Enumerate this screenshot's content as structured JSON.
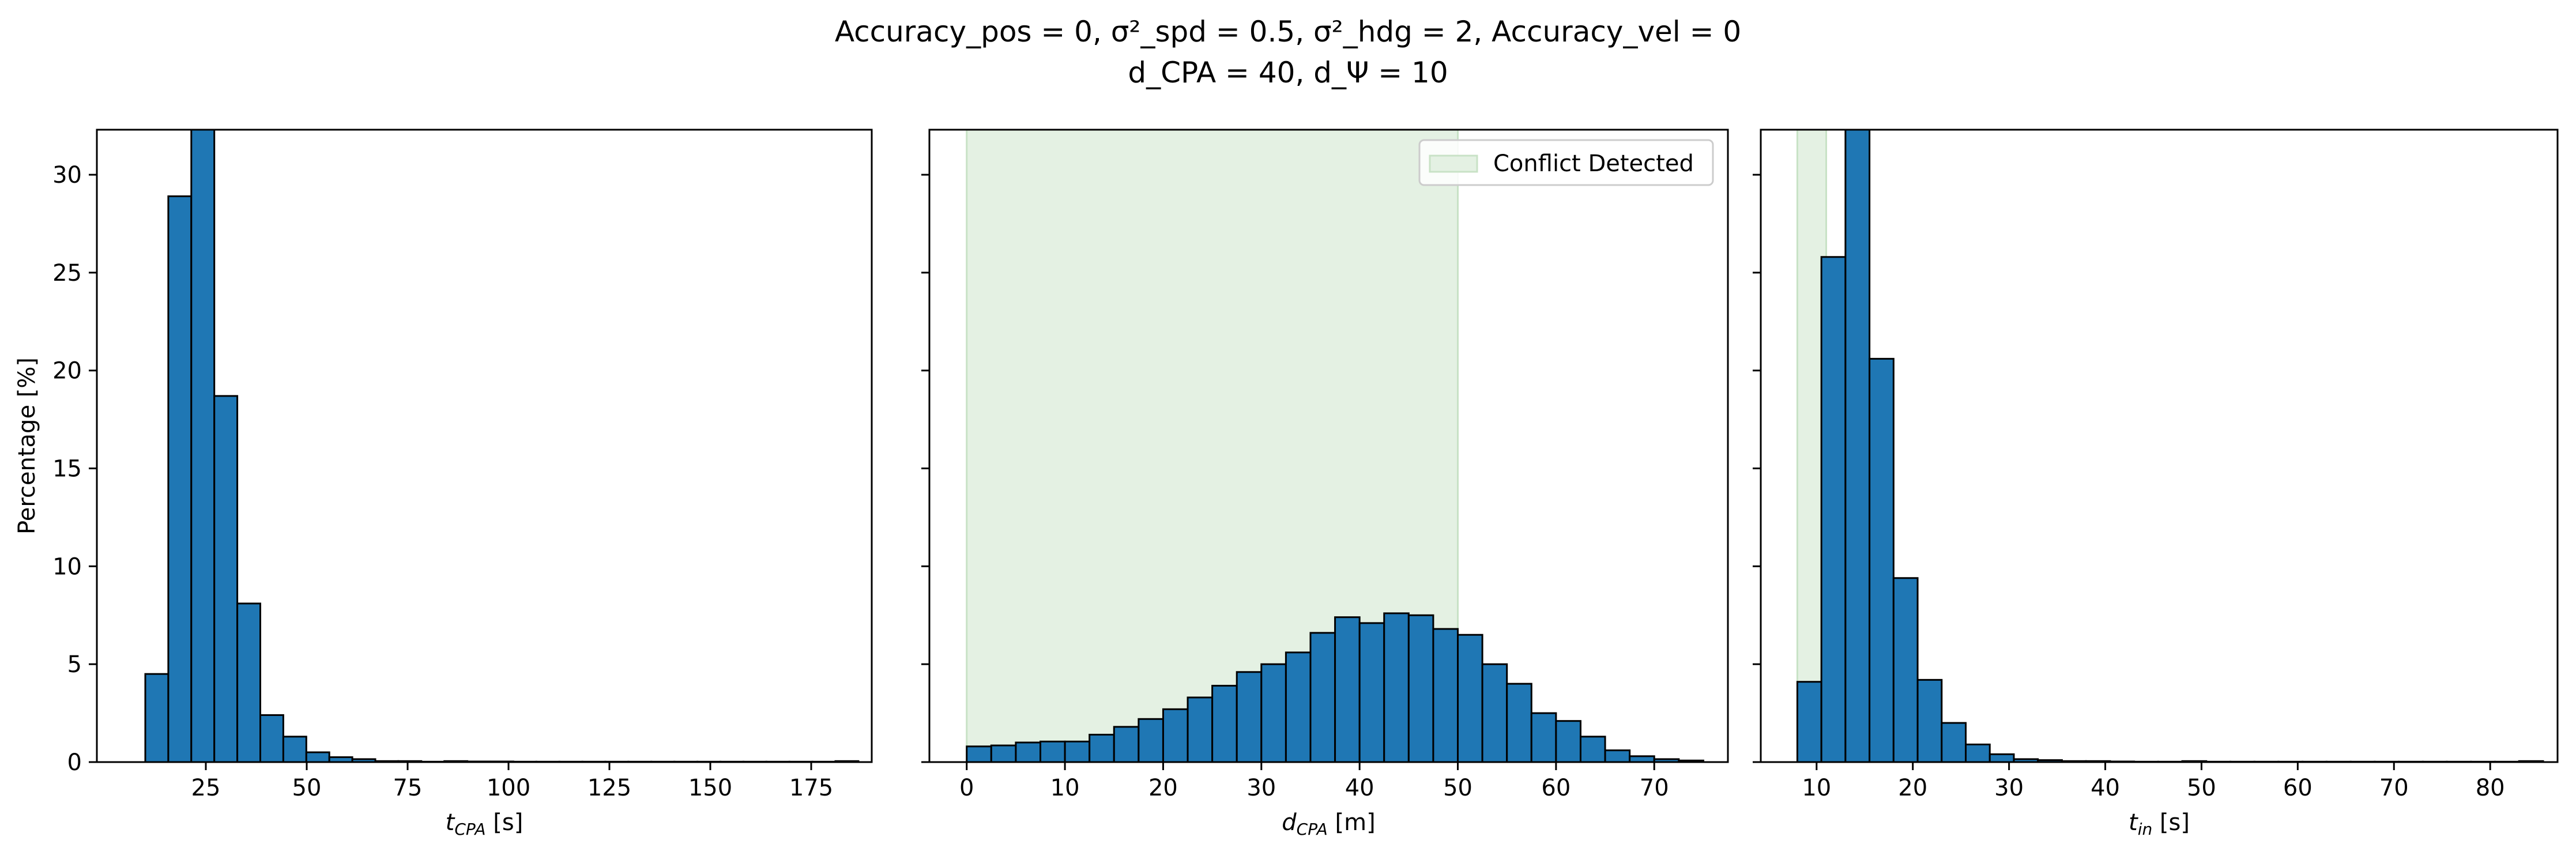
{
  "figure": {
    "title_line1": "Accuracy_pos = 0, σ²_spd = 0.5, σ²_hdg = 2, Accuracy_vel = 0",
    "title_line2": "d_CPA = 40, d_Ψ = 10"
  },
  "colors": {
    "bar_fill": "#1f77b4",
    "bar_edge": "#000000",
    "conflict_shade": "#e4f1e3",
    "conflict_edge": "#c8e2c6"
  },
  "chart_data": [
    {
      "type": "bar",
      "xlabel": "t_CPA [s]",
      "ylabel": "Percentage [%]",
      "xlim": [
        -2,
        190
      ],
      "ylim": [
        0,
        32.3
      ],
      "xticks": [
        25,
        50,
        75,
        100,
        125,
        150,
        175
      ],
      "yticks": [
        0,
        5,
        10,
        15,
        20,
        25,
        30
      ],
      "bin_width": 5.7,
      "bin_start": 10,
      "values": [
        4.5,
        28.9,
        32.3,
        18.7,
        8.1,
        2.4,
        1.3,
        0.5,
        0.25,
        0.15,
        0.05,
        0.05,
        0.02,
        0.05,
        0.03,
        0.03,
        0.02,
        0.02,
        0.02,
        0.02,
        0.02,
        0.02,
        0.02,
        0.02,
        0.02,
        0.02,
        0.02,
        0.02,
        0.02,
        0.02,
        0.05
      ],
      "grid": false
    },
    {
      "type": "bar",
      "xlabel": "d_CPA [m]",
      "ylabel": "",
      "xlim": [
        -3.8,
        77.5
      ],
      "ylim": [
        0,
        32.3
      ],
      "xticks": [
        0,
        10,
        20,
        30,
        40,
        50,
        60,
        70
      ],
      "yticks": [
        0,
        5,
        10,
        15,
        20,
        25,
        30
      ],
      "bin_width": 2.5,
      "bin_start": 0,
      "values": [
        0.8,
        0.85,
        1.0,
        1.05,
        1.05,
        1.4,
        1.8,
        2.2,
        2.7,
        3.3,
        3.9,
        4.6,
        5.0,
        5.6,
        6.6,
        7.4,
        7.1,
        7.6,
        7.5,
        6.8,
        6.5,
        5.0,
        4.0,
        2.5,
        2.1,
        1.3,
        0.6,
        0.3,
        0.15,
        0.08
      ],
      "shaded_region": [
        0,
        50
      ],
      "legend": {
        "label": "Conflict Detected",
        "position": "top-right"
      },
      "grid": false
    },
    {
      "type": "bar",
      "xlabel": "t_in [s]",
      "ylabel": "",
      "xlim": [
        4.2,
        87.0
      ],
      "ylim": [
        0,
        32.3
      ],
      "xticks": [
        10,
        20,
        30,
        40,
        50,
        60,
        70,
        80
      ],
      "yticks": [
        0,
        5,
        10,
        15,
        20,
        25,
        30
      ],
      "bin_width": 2.5,
      "bin_start": 8,
      "values": [
        4.1,
        25.8,
        32.3,
        20.6,
        9.4,
        4.2,
        2.0,
        0.9,
        0.4,
        0.15,
        0.1,
        0.05,
        0.05,
        0.03,
        0.02,
        0.02,
        0.05,
        0.02,
        0.02,
        0.02,
        0.02,
        0.02,
        0.02,
        0.02,
        0.02,
        0.02,
        0.02,
        0.02,
        0.02,
        0.02,
        0.05
      ],
      "shaded_region": [
        8,
        11
      ],
      "grid": false
    }
  ]
}
